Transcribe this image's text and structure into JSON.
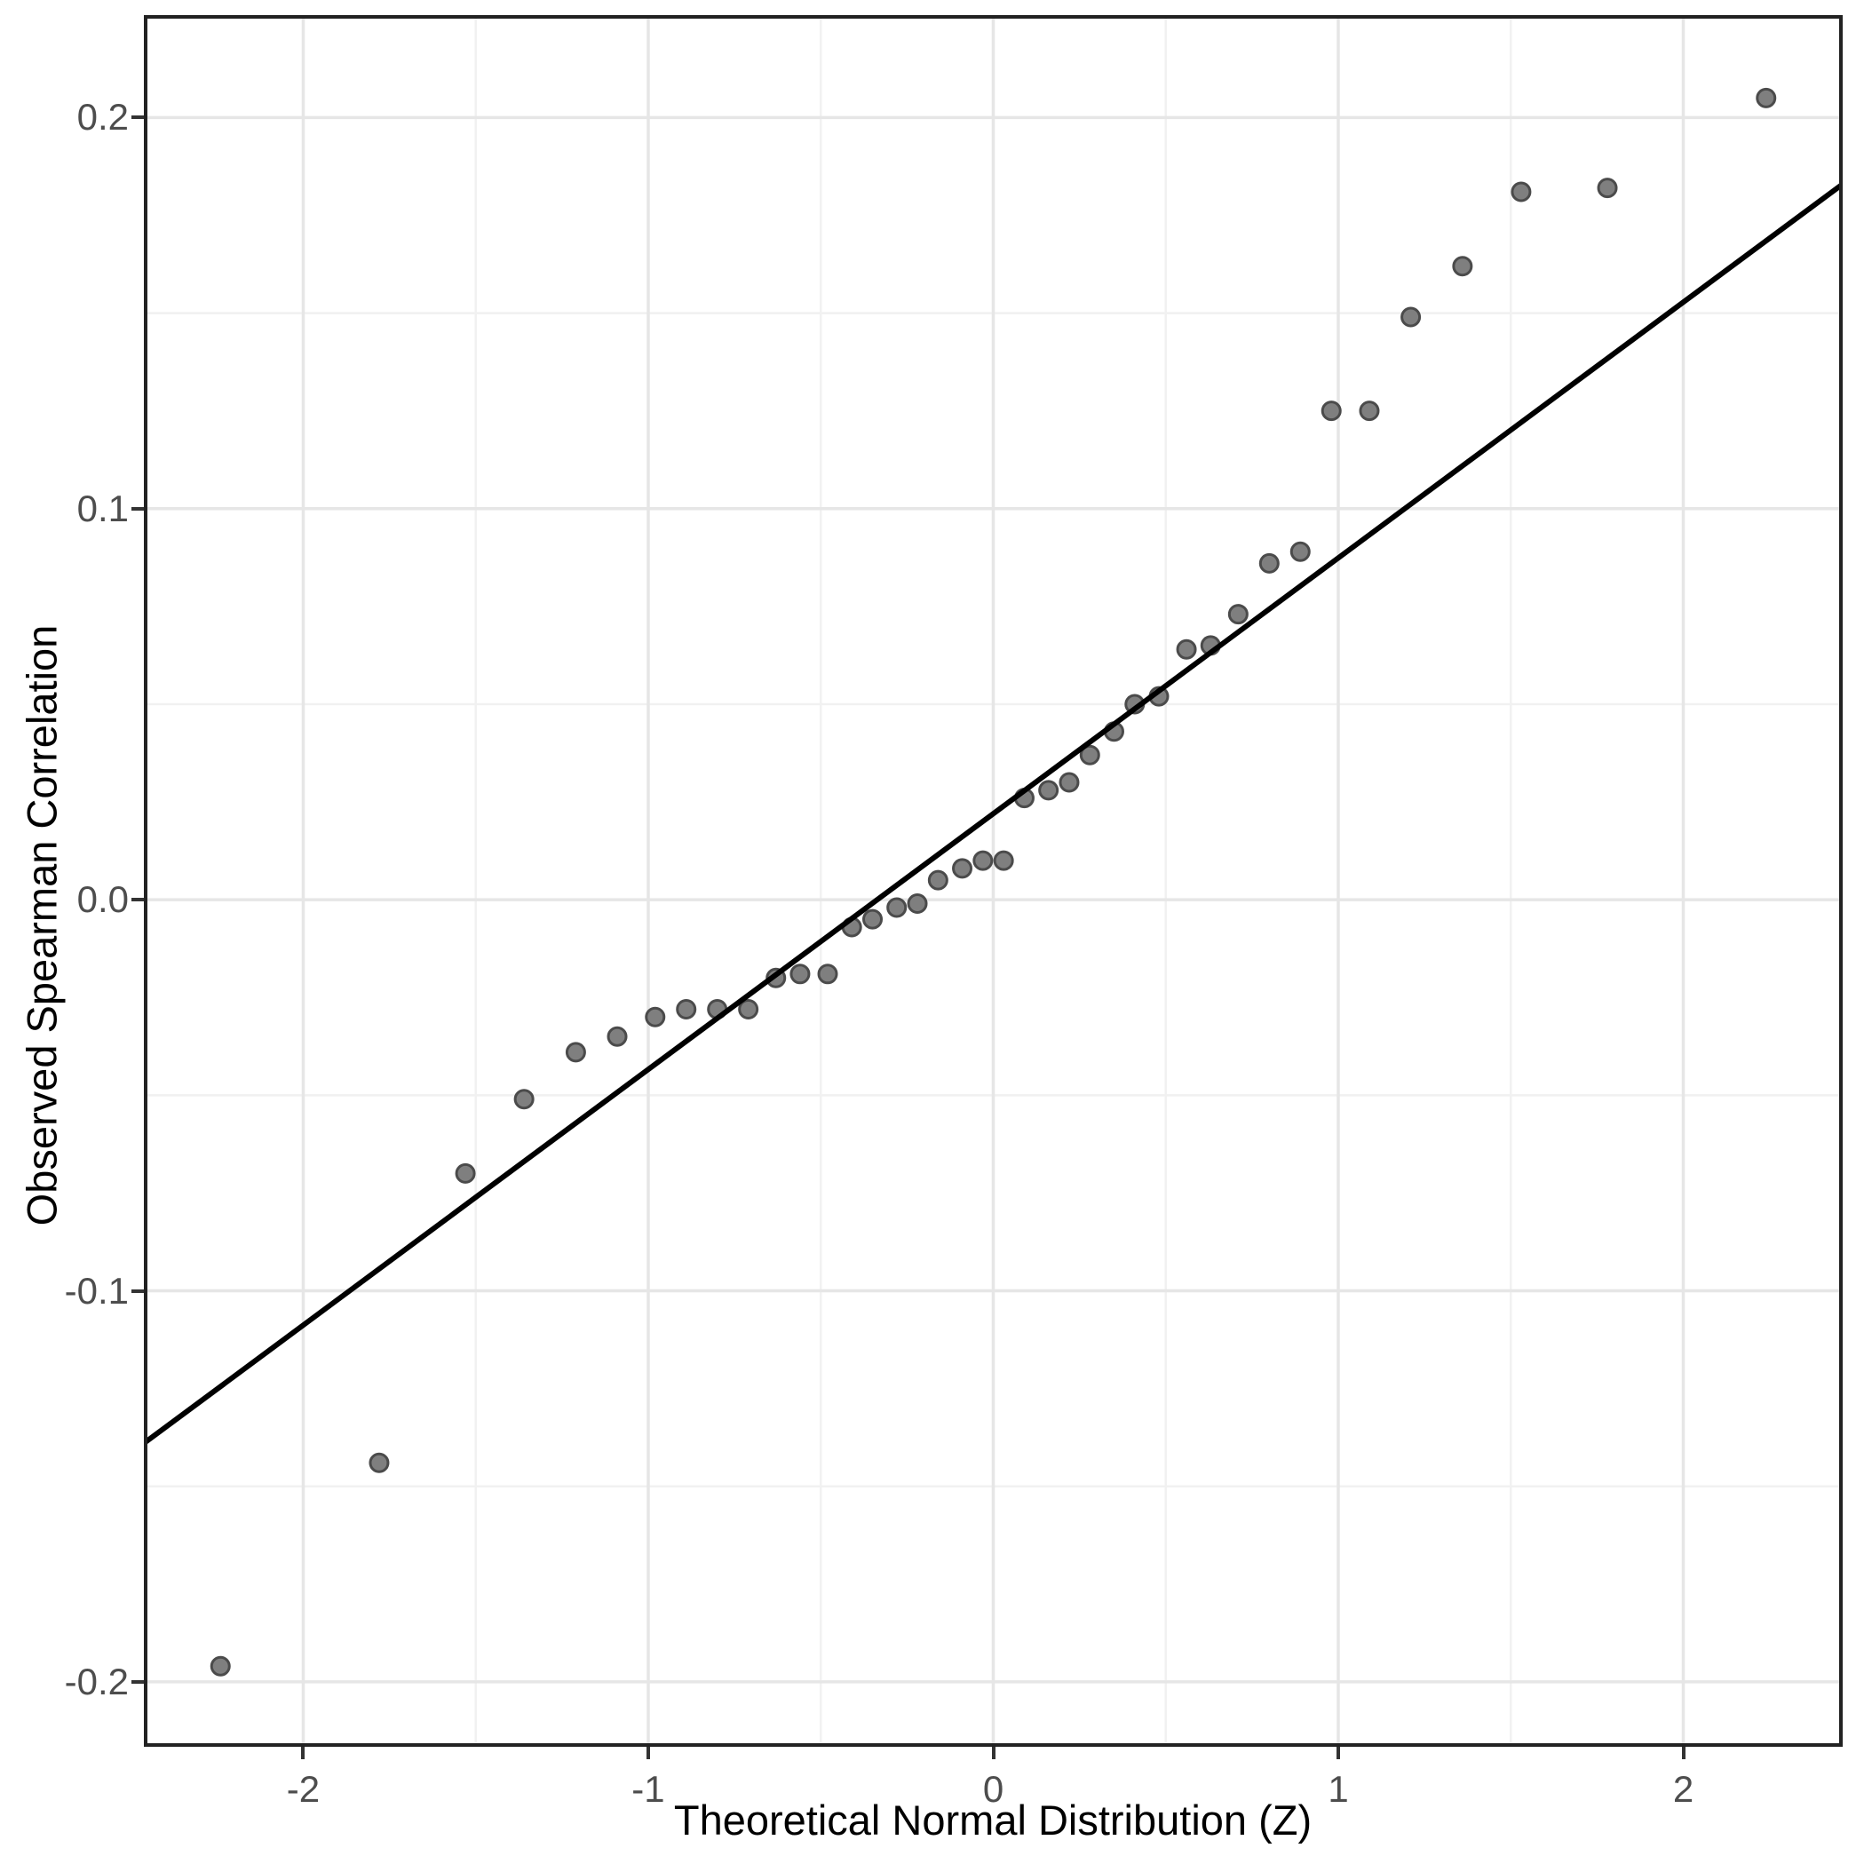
{
  "figure": {
    "background_color": "#ffffff"
  },
  "chart_data": {
    "type": "scatter",
    "title": "",
    "xlabel": "Theoretical Normal Distribution (Z)",
    "ylabel": "Observed Spearman Correlation",
    "xlim": [
      -2.462,
      2.462
    ],
    "ylim": [
      -0.2166,
      0.2262
    ],
    "grid": true,
    "legend_position": "none",
    "x_major_ticks": [
      -2,
      -1,
      0,
      1,
      2
    ],
    "x_tick_labels": [
      "-2",
      "-1",
      "0",
      "1",
      "2"
    ],
    "x_minor_ticks": [
      -1.5,
      -0.5,
      0.5,
      1.5
    ],
    "y_major_ticks": [
      0.2,
      0.1,
      0.0,
      -0.1,
      -0.2
    ],
    "y_tick_labels": [
      "0.2",
      "0.1",
      "0.0",
      "-0.1",
      "-0.2"
    ],
    "y_minor_ticks": [
      0.15,
      0.05,
      -0.05,
      -0.15
    ],
    "points": [
      [
        -2.24,
        -0.196
      ],
      [
        -1.78,
        -0.144
      ],
      [
        -1.53,
        -0.07
      ],
      [
        -1.36,
        -0.051
      ],
      [
        -1.21,
        -0.039
      ],
      [
        -1.09,
        -0.035
      ],
      [
        -0.98,
        -0.03
      ],
      [
        -0.89,
        -0.028
      ],
      [
        -0.8,
        -0.028
      ],
      [
        -0.71,
        -0.028
      ],
      [
        -0.63,
        -0.02
      ],
      [
        -0.56,
        -0.019
      ],
      [
        -0.48,
        -0.019
      ],
      [
        -0.41,
        -0.007
      ],
      [
        -0.35,
        -0.005
      ],
      [
        -0.28,
        -0.002
      ],
      [
        -0.22,
        -0.001
      ],
      [
        -0.16,
        0.005
      ],
      [
        -0.09,
        0.008
      ],
      [
        -0.03,
        0.01
      ],
      [
        0.03,
        0.01
      ],
      [
        0.09,
        0.026
      ],
      [
        0.16,
        0.028
      ],
      [
        0.22,
        0.03
      ],
      [
        0.28,
        0.037
      ],
      [
        0.35,
        0.043
      ],
      [
        0.41,
        0.05
      ],
      [
        0.48,
        0.052
      ],
      [
        0.56,
        0.064
      ],
      [
        0.63,
        0.065
      ],
      [
        0.71,
        0.073
      ],
      [
        0.8,
        0.086
      ],
      [
        0.89,
        0.089
      ],
      [
        0.98,
        0.125
      ],
      [
        1.09,
        0.125
      ],
      [
        1.21,
        0.149
      ],
      [
        1.36,
        0.162
      ],
      [
        1.53,
        0.181
      ],
      [
        1.78,
        0.182
      ],
      [
        2.24,
        0.205
      ]
    ],
    "reference_line": {
      "slope": 0.0655,
      "intercept": 0.022,
      "x1": -2.462,
      "y1": -0.139,
      "x2": 2.462,
      "y2": 0.183
    },
    "colors": {
      "point_fill": "#7f7f7f",
      "point_stroke": "#4b4b4b",
      "reference_line": "#000000",
      "grid_major": "#e6e6e6",
      "grid_minor": "#f1f1f1",
      "panel_border": "#222222",
      "tick_mark": "#333333",
      "tick_label": "#4d4d4d",
      "axis_title": "#000000"
    },
    "point_radius": 10
  }
}
